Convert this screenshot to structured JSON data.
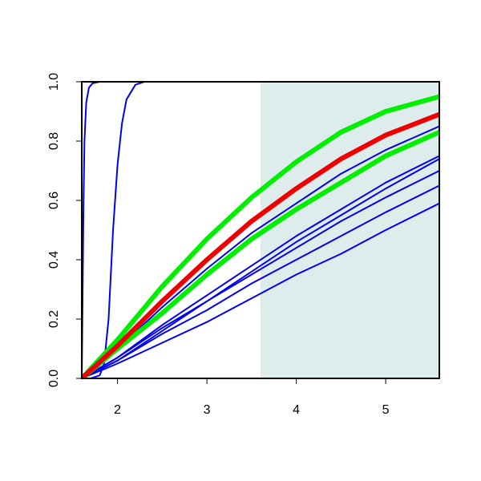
{
  "chart_data": {
    "type": "line",
    "xlim": [
      1.6,
      5.6
    ],
    "ylim": [
      0,
      1
    ],
    "xticks": [
      2,
      3,
      4,
      5
    ],
    "yticks": [
      {
        "value": 0,
        "label": "0.0"
      },
      0.2,
      0.4,
      0.6,
      0.8,
      {
        "value": 1,
        "label": "1.0"
      }
    ],
    "shaded_region": {
      "x": [
        3.6,
        5.6
      ],
      "color": "#deeceb"
    },
    "series": [
      {
        "color": "#0000ee",
        "width": 2,
        "x": [
          1.6,
          1.61,
          1.62,
          1.63,
          1.65,
          1.68,
          1.72,
          1.8,
          5.6
        ],
        "values": [
          0,
          0.3,
          0.6,
          0.8,
          0.93,
          0.98,
          0.995,
          1,
          1
        ]
      },
      {
        "color": "#0000ee",
        "width": 2,
        "x": [
          1.6,
          1.7,
          1.8,
          1.85,
          1.9,
          1.95,
          2.0,
          2.05,
          2.1,
          2.2,
          2.3,
          5.6
        ],
        "values": [
          0,
          0,
          0.01,
          0.05,
          0.2,
          0.5,
          0.72,
          0.86,
          0.94,
          0.99,
          1,
          1
        ]
      },
      {
        "color": "#0000ee",
        "width": 2,
        "x": [
          1.6,
          2,
          2.5,
          3,
          3.5,
          4,
          4.5,
          5,
          5.6
        ],
        "values": [
          0,
          0.1,
          0.24,
          0.37,
          0.49,
          0.59,
          0.69,
          0.77,
          0.85
        ]
      },
      {
        "color": "#0000ee",
        "width": 2,
        "x": [
          1.6,
          2,
          2.5,
          3,
          3.5,
          4,
          4.5,
          5,
          5.6
        ],
        "values": [
          0,
          0.07,
          0.18,
          0.28,
          0.38,
          0.48,
          0.57,
          0.66,
          0.75
        ]
      },
      {
        "color": "#0000ee",
        "width": 2,
        "x": [
          1.6,
          2,
          2.5,
          3,
          3.5,
          4,
          4.5,
          5,
          5.6
        ],
        "values": [
          0,
          0.06,
          0.16,
          0.26,
          0.36,
          0.46,
          0.55,
          0.64,
          0.74
        ]
      },
      {
        "color": "#0000ee",
        "width": 2,
        "x": [
          1.6,
          2,
          2.5,
          3,
          3.5,
          4,
          4.5,
          5,
          5.6
        ],
        "values": [
          0,
          0.07,
          0.17,
          0.26,
          0.35,
          0.44,
          0.53,
          0.61,
          0.7
        ]
      },
      {
        "color": "#0000ee",
        "width": 2,
        "x": [
          1.6,
          2,
          2.5,
          3,
          3.5,
          4,
          4.5,
          5,
          5.6
        ],
        "values": [
          0,
          0.06,
          0.15,
          0.23,
          0.32,
          0.4,
          0.48,
          0.56,
          0.65
        ]
      },
      {
        "color": "#0000ee",
        "width": 2,
        "x": [
          1.6,
          2,
          2.5,
          3,
          3.5,
          4,
          4.5,
          5,
          5.6
        ],
        "values": [
          0,
          0.05,
          0.12,
          0.19,
          0.27,
          0.35,
          0.42,
          0.5,
          0.59
        ]
      },
      {
        "color": "#00ee00",
        "width": 6,
        "x": [
          1.6,
          2,
          2.5,
          3,
          3.5,
          4,
          4.5,
          5,
          5.6
        ],
        "values": [
          0,
          0.13,
          0.31,
          0.47,
          0.61,
          0.73,
          0.83,
          0.9,
          0.95
        ]
      },
      {
        "color": "#00ee00",
        "width": 6,
        "x": [
          1.6,
          2,
          2.5,
          3,
          3.5,
          4,
          4.5,
          5,
          5.6
        ],
        "values": [
          0,
          0.1,
          0.22,
          0.35,
          0.47,
          0.57,
          0.66,
          0.75,
          0.83
        ]
      },
      {
        "color": "#ee0000",
        "width": 6,
        "x": [
          1.6,
          2,
          2.5,
          3,
          3.5,
          4,
          4.5,
          5,
          5.6
        ],
        "values": [
          0,
          0.11,
          0.26,
          0.4,
          0.53,
          0.64,
          0.74,
          0.82,
          0.89
        ]
      }
    ]
  }
}
